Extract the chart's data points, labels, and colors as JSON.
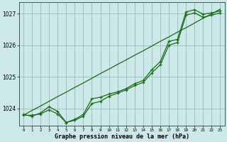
{
  "xlabel": "Graphe pression niveau de la mer (hPa)",
  "background_color": "#cce8e8",
  "grid_color": "#99bbbb",
  "line_color": "#1a6b1a",
  "x": [
    0,
    1,
    2,
    3,
    4,
    5,
    6,
    7,
    8,
    9,
    10,
    11,
    12,
    13,
    14,
    15,
    16,
    17,
    18,
    19,
    20,
    21,
    22,
    23
  ],
  "y_main": [
    1023.8,
    1023.75,
    1023.85,
    1024.05,
    1023.9,
    1023.55,
    1023.65,
    1023.8,
    1024.3,
    1024.35,
    1024.45,
    1024.52,
    1024.62,
    1024.78,
    1024.88,
    1025.22,
    1025.48,
    1026.12,
    1026.18,
    1027.05,
    1027.12,
    1026.98,
    1027.02,
    1027.08
  ],
  "y_linear": [
    1023.78,
    1023.93,
    1024.07,
    1024.22,
    1024.37,
    1024.51,
    1024.66,
    1024.8,
    1024.95,
    1025.1,
    1025.24,
    1025.39,
    1025.53,
    1025.68,
    1025.82,
    1025.97,
    1026.12,
    1026.26,
    1026.41,
    1026.55,
    1026.7,
    1026.85,
    1026.99,
    1027.14
  ],
  "y_smooth": [
    1023.78,
    1023.78,
    1023.82,
    1023.95,
    1023.82,
    1023.55,
    1023.62,
    1023.75,
    1024.15,
    1024.22,
    1024.38,
    1024.48,
    1024.58,
    1024.72,
    1024.82,
    1025.12,
    1025.38,
    1026.0,
    1026.08,
    1026.95,
    1027.02,
    1026.88,
    1026.95,
    1027.02
  ],
  "ylim_min": 1023.45,
  "ylim_max": 1027.35,
  "yticks": [
    1024,
    1025,
    1026,
    1027
  ],
  "xticks": [
    0,
    1,
    2,
    3,
    4,
    5,
    6,
    7,
    8,
    9,
    10,
    11,
    12,
    13,
    14,
    15,
    16,
    17,
    18,
    19,
    20,
    21,
    22,
    23
  ],
  "xlabel_fontsize": 6.0,
  "tick_fontsize": 5.5,
  "linewidth": 0.9,
  "markersize": 3.0
}
